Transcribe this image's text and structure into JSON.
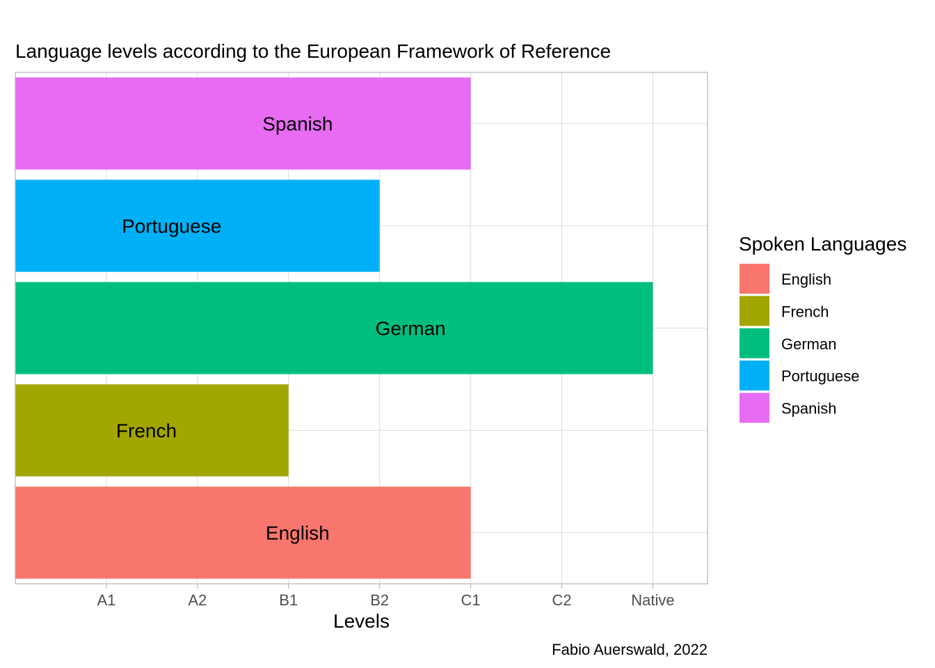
{
  "chart_data": {
    "type": "bar",
    "orientation": "horizontal",
    "title": "Language levels according to the European Framework of Reference",
    "xlabel": "Levels",
    "ylabel": "",
    "x_ticks": [
      "A1",
      "A2",
      "B1",
      "B2",
      "C1",
      "C2",
      "Native"
    ],
    "xlim": [
      0,
      7.6
    ],
    "categories": [
      "English",
      "French",
      "German",
      "Portuguese",
      "Spanish"
    ],
    "values": [
      5,
      3,
      7,
      4,
      5
    ],
    "bar_labels": [
      "English",
      "French",
      "German",
      "Portuguese",
      "Spanish"
    ],
    "colors": [
      "#F8766D",
      "#A3A500",
      "#00BF7D",
      "#00B0F6",
      "#E76BF3"
    ],
    "grid": true,
    "legend": {
      "title": "Spoken Languages",
      "placement": "right",
      "entries": [
        "English",
        "French",
        "German",
        "Portuguese",
        "Spanish"
      ]
    },
    "caption": "Fabio Auerswald, 2022"
  }
}
